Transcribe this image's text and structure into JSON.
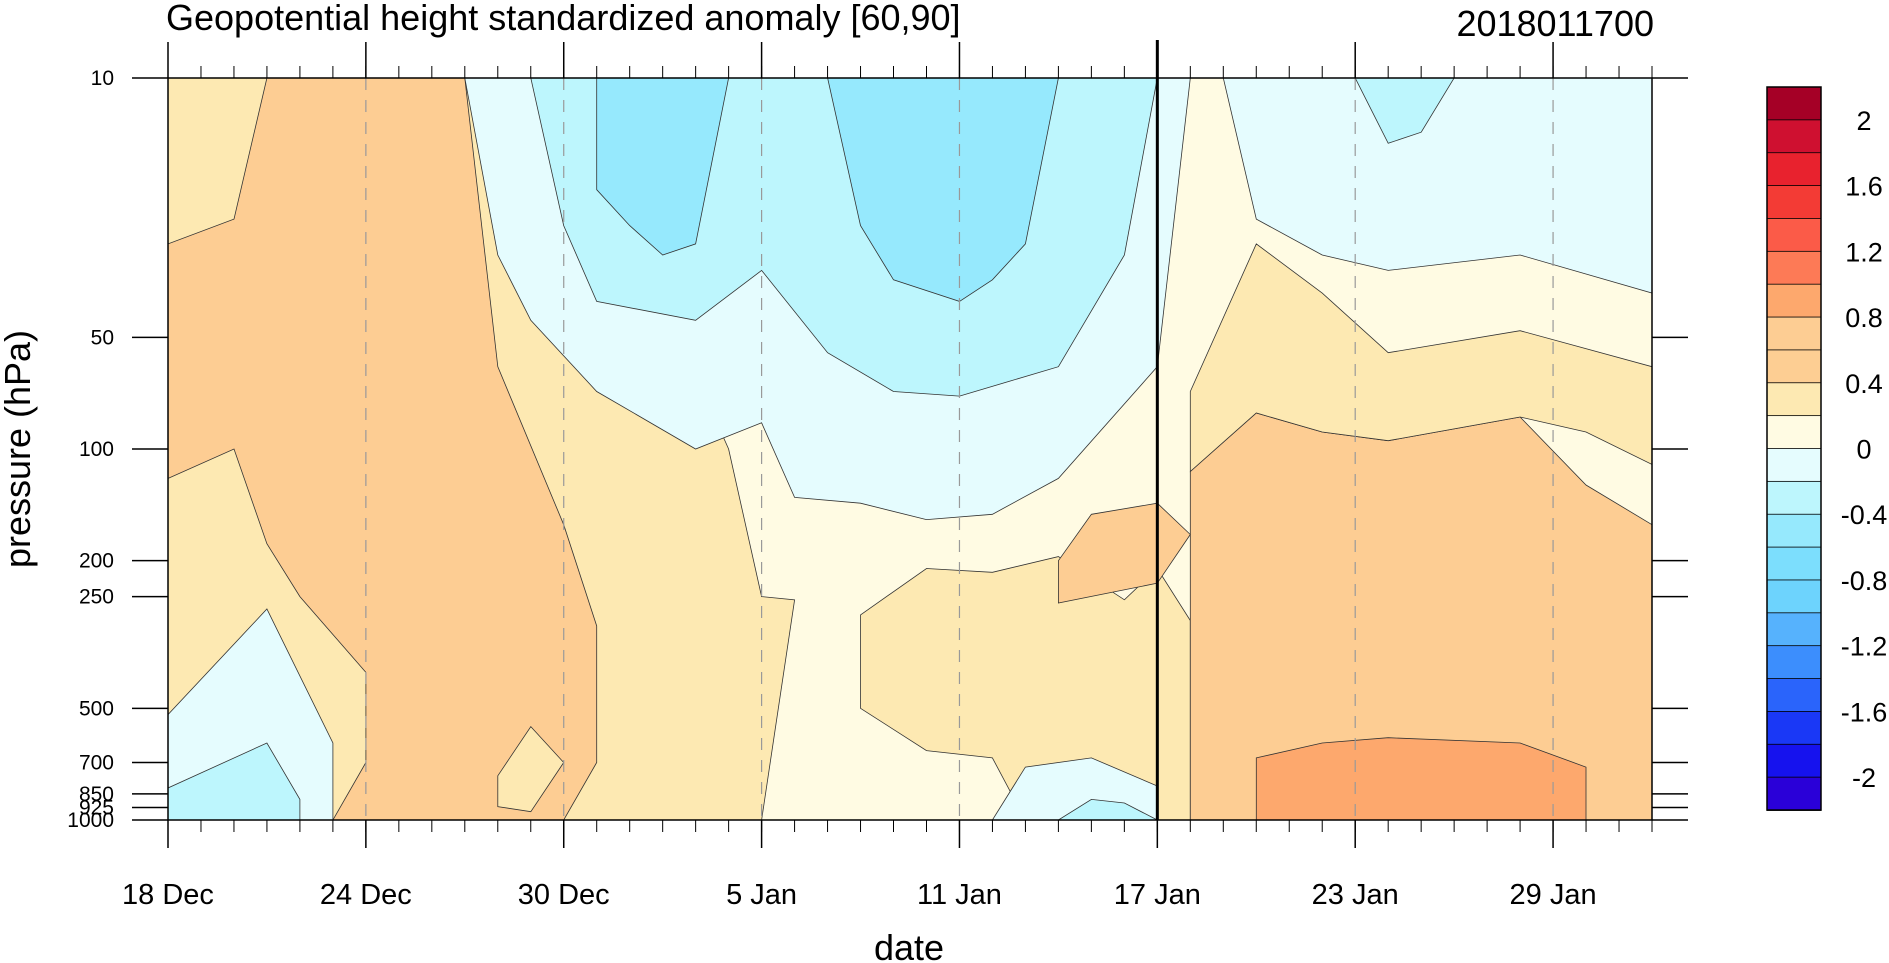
{
  "chart_data": {
    "type": "heatmap",
    "title": "Geopotential height standardized anomaly [60,90]",
    "date_label": "2018011700",
    "xlabel": "date",
    "ylabel": "pressure (hPa)",
    "x_range": [
      "2017-12-18",
      "2018-02-01"
    ],
    "y_scale": "log",
    "y_range": [
      1000,
      10
    ],
    "x_tick_labels": [
      "18 Dec",
      "24 Dec",
      "30 Dec",
      "5 Jan",
      "11 Jan",
      "17 Jan",
      "23 Jan",
      "29 Jan"
    ],
    "x_tick_dates": [
      "2017-12-18",
      "2017-12-24",
      "2017-12-30",
      "2018-01-05",
      "2018-01-11",
      "2018-01-17",
      "2018-01-23",
      "2018-01-29"
    ],
    "y_tick_labels": [
      "10",
      "50",
      "100",
      "200",
      "250",
      "500",
      "700",
      "850",
      "925",
      "1000"
    ],
    "y_tick_values": [
      10,
      50,
      100,
      200,
      250,
      500,
      700,
      850,
      925,
      1000
    ],
    "vertical_marker_date": "2018-01-17",
    "colorbar": {
      "labels": [
        "2",
        "1.6",
        "1.2",
        "0.8",
        "0.4",
        "0",
        "-0.4",
        "-0.8",
        "-1.2",
        "-1.6",
        "-2"
      ],
      "label_values": [
        2,
        1.6,
        1.2,
        0.8,
        0.4,
        0,
        -0.4,
        -0.8,
        -1.2,
        -1.6,
        -2
      ],
      "colors": [
        "#a50026",
        "#cf1030",
        "#e8222e",
        "#f33b35",
        "#fb5b48",
        "#fd7a56",
        "#fda86d",
        "#fdcd93",
        "#fdce93",
        "#fde9b2",
        "#fffbe3",
        "#e5fcfe",
        "#bdf6fd",
        "#96e9fd",
        "#7cdefd",
        "#6dd3fd",
        "#56b2fd",
        "#3c8efd",
        "#2a64fb",
        "#1a38f6",
        "#1612ee",
        "#2a00d8"
      ]
    },
    "regions": [
      {
        "color": "#fffbe3",
        "points": [
          [
            "2017-12-18",
            10
          ],
          [
            "2018-02-01",
            10
          ],
          [
            "2018-02-01",
            1000
          ],
          [
            "2017-12-18",
            1000
          ]
        ]
      },
      {
        "color": "#fde9b2",
        "points": [
          [
            "2017-12-18",
            10
          ],
          [
            "2017-12-30",
            10
          ],
          [
            "2018-01-04",
            100
          ],
          [
            "2018-01-05",
            250
          ],
          [
            "2018-01-06",
            255
          ],
          [
            "2018-01-05",
            1000
          ],
          [
            "2017-12-18",
            1000
          ]
        ]
      },
      {
        "color": "#fdcd93",
        "points": [
          [
            "2017-12-18",
            28
          ],
          [
            "2017-12-20",
            24
          ],
          [
            "2017-12-21",
            10
          ],
          [
            "2017-12-27",
            10
          ],
          [
            "2017-12-28",
            60
          ],
          [
            "2017-12-30",
            160
          ],
          [
            "2017-12-31",
            300
          ],
          [
            "2017-12-31",
            700
          ],
          [
            "2017-12-30",
            1000
          ],
          [
            "2017-12-23",
            1000
          ],
          [
            "2017-12-24",
            700
          ],
          [
            "2017-12-24",
            400
          ],
          [
            "2017-12-22",
            250
          ],
          [
            "2017-12-21",
            180
          ],
          [
            "2017-12-20",
            100
          ],
          [
            "2017-12-18",
            120
          ]
        ]
      },
      {
        "color": "#fde9b2",
        "points": [
          [
            "2017-12-28",
            760
          ],
          [
            "2017-12-29",
            560
          ],
          [
            "2017-12-30",
            700
          ],
          [
            "2017-12-29",
            950
          ],
          [
            "2017-12-28",
            920
          ]
        ]
      },
      {
        "color": "#e5fcfe",
        "points": [
          [
            "2017-12-18",
            520
          ],
          [
            "2017-12-21",
            270
          ],
          [
            "2017-12-23",
            620
          ],
          [
            "2017-12-23",
            1000
          ],
          [
            "2017-12-18",
            1000
          ]
        ]
      },
      {
        "color": "#bdf6fd",
        "points": [
          [
            "2017-12-18",
            820
          ],
          [
            "2017-12-21",
            620
          ],
          [
            "2017-12-22",
            880
          ],
          [
            "2017-12-22",
            1000
          ],
          [
            "2017-12-18",
            1000
          ]
        ]
      },
      {
        "color": "#fde9b2",
        "points": [
          [
            "2018-01-08",
            280
          ],
          [
            "2018-01-10",
            210
          ],
          [
            "2018-01-12",
            215
          ],
          [
            "2018-01-14",
            195
          ],
          [
            "2018-01-16",
            255
          ],
          [
            "2018-01-17",
            210
          ],
          [
            "2018-01-18",
            290
          ],
          [
            "2018-01-18",
            1000
          ],
          [
            "2018-01-13",
            1000
          ],
          [
            "2018-01-12",
            680
          ],
          [
            "2018-01-10",
            650
          ],
          [
            "2018-01-08",
            500
          ]
        ]
      },
      {
        "color": "#fdcd93",
        "points": [
          [
            "2018-01-18",
            115
          ],
          [
            "2018-01-20",
            80
          ],
          [
            "2018-01-22",
            90
          ],
          [
            "2018-01-24",
            95
          ],
          [
            "2018-01-28",
            82
          ],
          [
            "2018-01-30",
            125
          ],
          [
            "2018-02-01",
            160
          ],
          [
            "2018-02-01",
            1000
          ],
          [
            "2018-01-18",
            1000
          ]
        ]
      },
      {
        "color": "#fde9b2",
        "points": [
          [
            "2018-01-18",
            70
          ],
          [
            "2018-01-20",
            28
          ],
          [
            "2018-01-22",
            38
          ],
          [
            "2018-01-24",
            55
          ],
          [
            "2018-01-28",
            48
          ],
          [
            "2018-02-01",
            60
          ],
          [
            "2018-02-01",
            110
          ],
          [
            "2018-01-30",
            90
          ],
          [
            "2018-01-28",
            82
          ],
          [
            "2018-01-24",
            95
          ],
          [
            "2018-01-22",
            90
          ],
          [
            "2018-01-20",
            80
          ],
          [
            "2018-01-18",
            115
          ]
        ]
      },
      {
        "color": "#fdcd93",
        "points": [
          [
            "2018-01-14",
            200
          ],
          [
            "2018-01-15",
            150
          ],
          [
            "2018-01-17",
            140
          ],
          [
            "2018-01-18",
            170
          ],
          [
            "2018-01-17",
            230
          ],
          [
            "2018-01-14",
            260
          ]
        ]
      },
      {
        "color": "#fda86d",
        "points": [
          [
            "2018-01-20",
            680
          ],
          [
            "2018-01-22",
            620
          ],
          [
            "2018-01-24",
            600
          ],
          [
            "2018-01-28",
            620
          ],
          [
            "2018-01-30",
            720
          ],
          [
            "2018-01-30",
            1000
          ],
          [
            "2018-01-20",
            1000
          ]
        ]
      },
      {
        "color": "#e5fcfe",
        "points": [
          [
            "2017-12-27",
            10
          ],
          [
            "2018-01-18",
            10
          ],
          [
            "2018-01-17",
            60
          ],
          [
            "2018-01-14",
            120
          ],
          [
            "2018-01-12",
            150
          ],
          [
            "2018-01-10",
            155
          ],
          [
            "2018-01-08",
            140
          ],
          [
            "2018-01-06",
            135
          ],
          [
            "2018-01-05",
            85
          ],
          [
            "2018-01-03",
            100
          ],
          [
            "2017-12-31",
            70
          ],
          [
            "2017-12-29",
            45
          ],
          [
            "2017-12-28",
            30
          ]
        ]
      },
      {
        "color": "#bdf6fd",
        "points": [
          [
            "2017-12-29",
            10
          ],
          [
            "2018-01-17",
            10
          ],
          [
            "2018-01-16",
            30
          ],
          [
            "2018-01-14",
            60
          ],
          [
            "2018-01-11",
            72
          ],
          [
            "2018-01-09",
            70
          ],
          [
            "2018-01-07",
            55
          ],
          [
            "2018-01-05",
            33
          ],
          [
            "2018-01-03",
            45
          ],
          [
            "2017-12-31",
            40
          ],
          [
            "2017-12-30",
            25
          ]
        ]
      },
      {
        "color": "#96e9fd",
        "points": [
          [
            "2017-12-31",
            10
          ],
          [
            "2018-01-04",
            10
          ],
          [
            "2018-01-03",
            28
          ],
          [
            "2018-01-02",
            30
          ],
          [
            "2018-01-01",
            25
          ],
          [
            "2017-12-31",
            20
          ]
        ]
      },
      {
        "color": "#96e9fd",
        "points": [
          [
            "2018-01-07",
            10
          ],
          [
            "2018-01-14",
            10
          ],
          [
            "2018-01-13",
            28
          ],
          [
            "2018-01-12",
            35
          ],
          [
            "2018-01-11",
            40
          ],
          [
            "2018-01-09",
            35
          ],
          [
            "2018-01-08",
            25
          ]
        ]
      },
      {
        "color": "#e5fcfe",
        "points": [
          [
            "2018-01-19",
            10
          ],
          [
            "2018-02-01",
            10
          ],
          [
            "2018-02-01",
            38
          ],
          [
            "2018-01-28",
            30
          ],
          [
            "2018-01-24",
            33
          ],
          [
            "2018-01-22",
            30
          ],
          [
            "2018-01-20",
            24
          ]
        ]
      },
      {
        "color": "#bdf6fd",
        "points": [
          [
            "2018-01-23",
            10
          ],
          [
            "2018-01-26",
            10
          ],
          [
            "2018-01-25",
            14
          ],
          [
            "2018-01-24",
            15
          ]
        ]
      },
      {
        "color": "#e5fcfe",
        "points": [
          [
            "2018-01-12",
            1000
          ],
          [
            "2018-01-13",
            720
          ],
          [
            "2018-01-15",
            680
          ],
          [
            "2018-01-17",
            810
          ],
          [
            "2018-01-17",
            1000
          ]
        ]
      },
      {
        "color": "#bdf6fd",
        "points": [
          [
            "2018-01-14",
            1000
          ],
          [
            "2018-01-15",
            880
          ],
          [
            "2018-01-16",
            900
          ],
          [
            "2018-01-17",
            1000
          ]
        ]
      }
    ]
  }
}
